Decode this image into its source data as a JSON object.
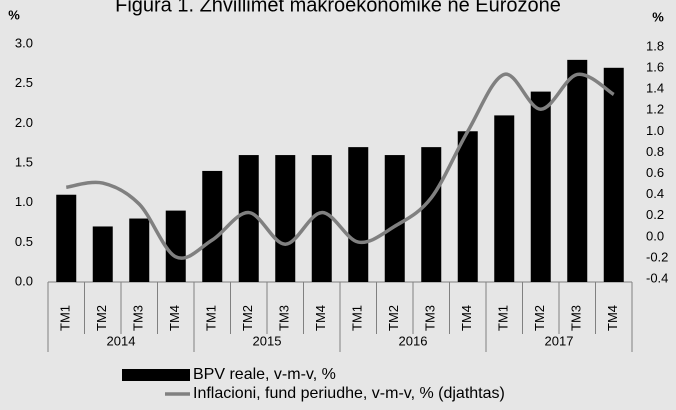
{
  "chart_data": {
    "type": "bar",
    "title": "Figura 1. Zhvillimet makroekonomike ne Eurozone",
    "ylabel": "%",
    "y2label": "%",
    "categories": [
      "TM1",
      "TM2",
      "TM3",
      "TM4",
      "TM1",
      "TM2",
      "TM3",
      "TM4",
      "TM1",
      "TM2",
      "TM3",
      "TM4",
      "TM1",
      "TM2",
      "TM3",
      "TM4"
    ],
    "x_groups": [
      "2014",
      "2015",
      "2016",
      "2017"
    ],
    "series": [
      {
        "name": "BPV reale, v-m-v, %",
        "type": "bar",
        "color": "#000000",
        "values": [
          1.1,
          0.7,
          0.8,
          0.9,
          1.4,
          1.6,
          1.6,
          1.6,
          1.7,
          1.6,
          1.7,
          1.9,
          2.1,
          2.4,
          2.8,
          2.7
        ]
      },
      {
        "name": "Inflacioni, fund periudhe, v-m-v, % (djathtas)",
        "type": "line",
        "axis": "y2",
        "color": "#808080",
        "values": [
          0.47,
          0.51,
          0.31,
          -0.19,
          -0.03,
          0.23,
          -0.07,
          0.23,
          -0.05,
          0.1,
          0.37,
          1.0,
          1.54,
          1.21,
          1.54,
          1.35
        ]
      }
    ],
    "ylim": [
      0,
      3
    ],
    "yticks": [
      {
        "value": 0,
        "label": "0.0"
      },
      0.5,
      {
        "value": 1,
        "label": "1.0"
      },
      1.5,
      {
        "value": 2,
        "label": "2.0"
      },
      2.5,
      {
        "value": 3,
        "label": "3.0"
      }
    ],
    "y2lim": [
      -0.4,
      1.8
    ],
    "y2ticks": [
      -0.4,
      -0.2,
      {
        "value": 0,
        "label": "0.0"
      },
      0.2,
      0.4,
      0.6,
      0.8,
      {
        "value": 1,
        "label": "1.0"
      },
      1.2,
      1.4,
      1.6,
      1.8
    ],
    "grid": false,
    "legend": "bottom"
  }
}
